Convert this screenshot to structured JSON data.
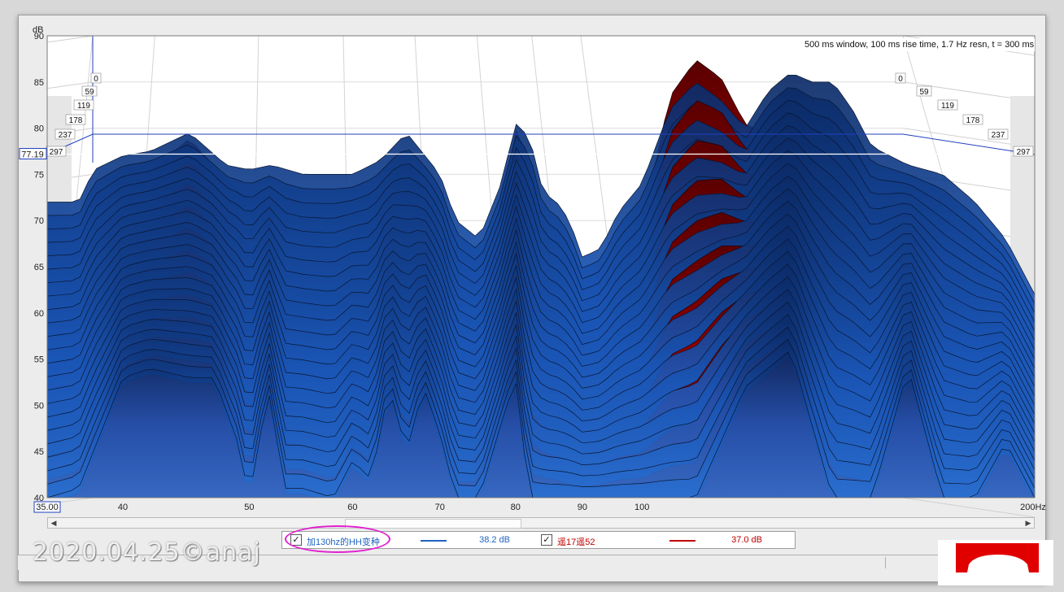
{
  "chart_data": {
    "type": "area",
    "title": "",
    "annotation": "500 ms window, 100 ms rise time,  1.7 Hz resn, t = 300 ms",
    "xlabel": "",
    "ylabel": "dB",
    "x_unit": "Hz",
    "x_scale": "log",
    "xlim": [
      35,
      200
    ],
    "ylim": [
      40,
      90
    ],
    "x_ticks": [
      "35.00",
      "40",
      "50",
      "60",
      "70",
      "80",
      "90",
      "100",
      "200Hz"
    ],
    "x_tick_values": [
      35,
      40,
      50,
      60,
      70,
      80,
      90,
      100,
      200
    ],
    "y_ticks": [
      40,
      45,
      50,
      55,
      60,
      65,
      70,
      75,
      80,
      85,
      90
    ],
    "cursor_value": "77.19",
    "time_slices_ms": [
      "0",
      "59",
      "119",
      "178",
      "237",
      "297"
    ],
    "grid": true,
    "series": [
      {
        "name": "加130hz的HH变种",
        "color": "#1f63c0",
        "legend_value": "38.2 dB",
        "back_envelope": {
          "x": [
            37,
            38,
            40,
            42,
            45,
            48,
            50,
            52,
            55,
            58,
            60,
            63,
            66,
            70,
            72,
            75,
            78,
            80,
            82,
            84,
            86,
            88,
            90,
            93,
            96,
            100,
            105,
            110,
            115,
            120,
            125,
            130,
            135,
            140,
            145,
            150,
            160,
            170,
            180,
            190,
            200
          ],
          "y": [
            72,
            75.5,
            77,
            77.5,
            79.5,
            76,
            75.5,
            76,
            75,
            75,
            75,
            76.5,
            79.5,
            75,
            70,
            68,
            74,
            80.5,
            79,
            73,
            72,
            70,
            66,
            67,
            71,
            74,
            82,
            85,
            83,
            80,
            84,
            86,
            85,
            85,
            82,
            78,
            76,
            75,
            72,
            68,
            62
          ]
        },
        "front_slice": {
          "x": [
            35,
            37,
            40,
            42,
            45,
            47,
            49,
            50,
            51,
            52,
            53,
            55,
            58,
            60,
            62,
            64,
            66,
            68,
            70,
            72,
            75,
            78,
            80,
            82,
            84,
            86,
            88,
            90,
            95,
            100,
            110,
            120,
            130,
            140,
            150,
            160,
            170,
            180,
            190,
            200
          ],
          "y": [
            40,
            41,
            53,
            54,
            53,
            53,
            46,
            40,
            47,
            52,
            41,
            41,
            40,
            44,
            42,
            52,
            45,
            52,
            47,
            40,
            40,
            48,
            53,
            40,
            40,
            40,
            40,
            40,
            40,
            40,
            40,
            52,
            56,
            40,
            40,
            54,
            40,
            40,
            46,
            40
          ]
        }
      },
      {
        "name": "遥17遥52",
        "color": "#c00000",
        "legend_value": "37.0 dB",
        "back_envelope": {
          "x": [
            37,
            38,
            40,
            42,
            45,
            48,
            50,
            52,
            55,
            58,
            60,
            63,
            66,
            70,
            72,
            75,
            78,
            80,
            82,
            84,
            86,
            88,
            90,
            93,
            96,
            100,
            105,
            110,
            115,
            120,
            125,
            130,
            135,
            140,
            145,
            150,
            160,
            170,
            180,
            190,
            200
          ],
          "y": [
            68,
            72,
            74,
            76,
            79.5,
            75,
            73,
            72,
            70,
            68,
            68,
            70,
            75,
            70,
            65,
            66,
            72,
            80.5,
            77,
            70,
            68,
            62,
            60,
            62,
            68,
            70,
            84,
            88,
            86,
            81,
            80,
            78,
            76,
            74,
            70,
            66,
            64,
            62,
            60,
            55,
            50
          ]
        }
      }
    ]
  },
  "legend": {
    "item1_label": "加130hz的HH变种",
    "item1_value": "38.2 dB",
    "item2_label": "遥17遥52",
    "item2_value": "37.0 dB"
  },
  "watermark": "2020.04.25©anaj",
  "check_glyph": "✓"
}
